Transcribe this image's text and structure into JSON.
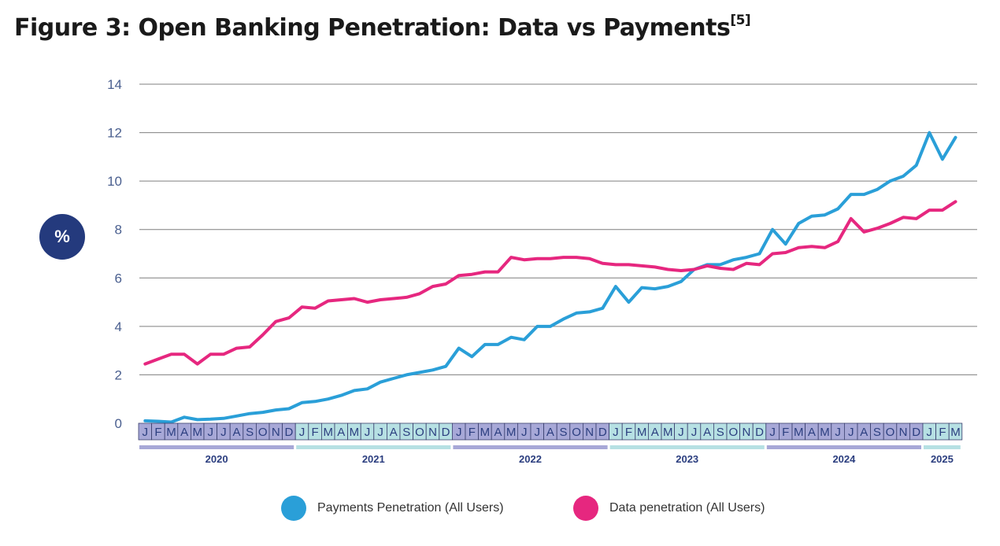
{
  "title": {
    "text": "Figure 3: Open Banking Penetration: Data vs Payments",
    "ref": "[5]"
  },
  "y_unit_badge": "%",
  "colors": {
    "payments": "#2a9fd8",
    "data": "#e6277f",
    "grid": "#7f7f7f",
    "tick_label": "#4a5f8f",
    "month_purple": "#a7a8d7",
    "month_teal": "#b6e0e3",
    "year_label": "#2b3e7f"
  },
  "chart_data": {
    "type": "line",
    "title": "Open Banking Penetration: Data vs Payments",
    "ylabel": "%",
    "ylim": [
      0,
      14
    ],
    "yticks": [
      0,
      2,
      4,
      6,
      8,
      10,
      12,
      14
    ],
    "grid": true,
    "legend_position": "bottom",
    "months": [
      "J",
      "F",
      "M",
      "A",
      "M",
      "J",
      "J",
      "A",
      "S",
      "O",
      "N",
      "D",
      "J",
      "F",
      "M",
      "A",
      "M",
      "J",
      "J",
      "A",
      "S",
      "O",
      "N",
      "D",
      "J",
      "F",
      "M",
      "A",
      "M",
      "J",
      "J",
      "A",
      "S",
      "O",
      "N",
      "D",
      "J",
      "F",
      "M",
      "A",
      "M",
      "J",
      "J",
      "A",
      "S",
      "O",
      "N",
      "D",
      "J",
      "F",
      "M",
      "A",
      "M",
      "J",
      "J",
      "A",
      "S",
      "O",
      "N",
      "D",
      "J",
      "F",
      "M"
    ],
    "years": [
      {
        "label": "2020",
        "months": 12
      },
      {
        "label": "2021",
        "months": 12
      },
      {
        "label": "2022",
        "months": 12
      },
      {
        "label": "2023",
        "months": 12
      },
      {
        "label": "2024",
        "months": 12
      },
      {
        "label": "2025",
        "months": 3
      }
    ],
    "series": [
      {
        "name": "Payments Penetration (All Users)",
        "color": "#2a9fd8",
        "values": [
          0.1,
          0.08,
          0.05,
          0.25,
          0.15,
          0.17,
          0.2,
          0.3,
          0.4,
          0.45,
          0.55,
          0.6,
          0.85,
          0.9,
          1.0,
          1.15,
          1.35,
          1.42,
          1.7,
          1.85,
          2.0,
          2.1,
          2.2,
          2.35,
          3.1,
          2.75,
          3.25,
          3.25,
          3.55,
          3.45,
          4.0,
          4.0,
          4.3,
          4.55,
          4.6,
          4.75,
          5.65,
          5.0,
          5.6,
          5.55,
          5.65,
          5.85,
          6.35,
          6.55,
          6.55,
          6.75,
          6.85,
          7.0,
          8.0,
          7.4,
          8.25,
          8.55,
          8.6,
          8.85,
          9.45,
          9.45,
          9.65,
          10.0,
          10.2,
          10.65,
          12.0,
          10.9,
          11.8
        ]
      },
      {
        "name": "Data penetration (All Users)",
        "color": "#e6277f",
        "values": [
          2.45,
          2.65,
          2.85,
          2.85,
          2.45,
          2.85,
          2.85,
          3.1,
          3.15,
          3.65,
          4.2,
          4.35,
          4.8,
          4.75,
          5.05,
          5.1,
          5.15,
          5.0,
          5.1,
          5.15,
          5.2,
          5.35,
          5.65,
          5.75,
          6.1,
          6.15,
          6.25,
          6.25,
          6.85,
          6.75,
          6.8,
          6.8,
          6.85,
          6.85,
          6.8,
          6.6,
          6.55,
          6.55,
          6.5,
          6.45,
          6.35,
          6.3,
          6.35,
          6.5,
          6.4,
          6.35,
          6.6,
          6.55,
          7.0,
          7.05,
          7.25,
          7.3,
          7.25,
          7.5,
          8.45,
          7.9,
          8.05,
          8.25,
          8.5,
          8.45,
          8.8,
          8.8,
          9.15
        ]
      }
    ]
  }
}
